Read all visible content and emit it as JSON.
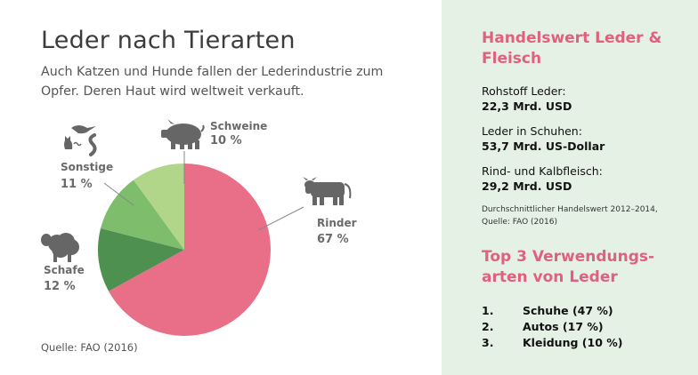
{
  "header": {
    "title": "Leder nach Tierarten",
    "subtitle": "Auch Katzen und Hunde fallen der Lederindustrie zum Opfer. Deren Haut wird weltweit verkauft."
  },
  "source": "Quelle: FAO (2016)",
  "colors": {
    "pink": "#e86f87",
    "dark_green": "#4e9050",
    "mid_green": "#7dbd6c",
    "light_green": "#b1d68a",
    "panel_bg": "#e6f1e6",
    "accent": "#e0607e",
    "icon_gray": "#666666"
  },
  "chart_data": {
    "type": "pie",
    "slices": [
      {
        "label": "Rinder",
        "value": 67,
        "value_label": "67 %",
        "color": "#e86f87",
        "icon": "cow-icon"
      },
      {
        "label": "Schafe",
        "value": 12,
        "value_label": "12 %",
        "color": "#4e9050",
        "icon": "sheep-icon"
      },
      {
        "label": "Sonstige",
        "value": 11,
        "value_label": "11 %",
        "color": "#7dbd6c",
        "icon": "misc-animals-icon"
      },
      {
        "label": "Schweine",
        "value": 10,
        "value_label": "10 %",
        "color": "#b1d68a",
        "icon": "pig-icon"
      }
    ]
  },
  "sidebar": {
    "trade_heading": "Handelswert Leder & Fleisch",
    "stats": [
      {
        "label": "Rohstoff Leder:",
        "value": "22,3 Mrd. USD"
      },
      {
        "label": "Leder in Schuhen:",
        "value": "53,7 Mrd. US-Dollar"
      },
      {
        "label": "Rind- und Kalbfleisch:",
        "value": "29,2 Mrd. USD"
      }
    ],
    "note": "Durchschnittlicher Handelswert 2012–2014, Quelle: FAO (2016)",
    "top_heading": "Top 3 Verwendungs-arten von Leder",
    "top_uses": [
      {
        "rank": "1.",
        "text": "Schuhe (47 %)"
      },
      {
        "rank": "2.",
        "text": "Autos (17 %)"
      },
      {
        "rank": "3.",
        "text": "Kleidung (10 %)"
      }
    ]
  }
}
